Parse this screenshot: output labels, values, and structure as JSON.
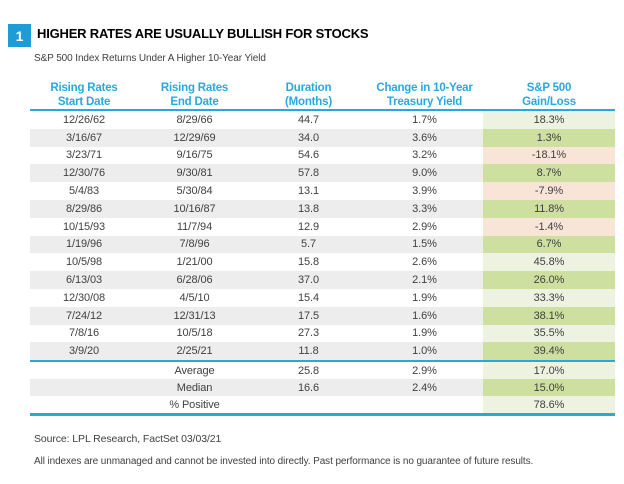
{
  "figure_number": "1",
  "source": "Source: LPL Research, FactSet 03/03/21",
  "disclaimer": "All indexes are unmanaged and cannot be invested into directly. Past performance is no guarantee of future results.",
  "colors": {
    "accent-blue": "#29A8E0",
    "badge-blue": "#1C9DD8",
    "row-stripe": "#EDEDEE",
    "positive-green": "#CDE0A0",
    "positive-green-light": "#EDF3E0",
    "negative-red": "#F9E4D8",
    "text-dark": "#414042"
  },
  "chart_data": {
    "type": "table",
    "title": "HIGHER RATES ARE USUALLY BULLISH FOR STOCKS",
    "subtitle": "S&P 500 Index Returns Under A Higher 10-Year Yield",
    "columns": [
      {
        "line1": "Rising Rates",
        "line2": "Start Date"
      },
      {
        "line1": "Rising Rates",
        "line2": "End Date"
      },
      {
        "line1": "Duration",
        "line2": "(Months)"
      },
      {
        "line1": "Change in 10-Year",
        "line2": "Treasury Yield"
      },
      {
        "line1": "S&P 500",
        "line2": "Gain/Loss"
      }
    ],
    "rows": [
      {
        "cells": [
          "12/26/62",
          "8/29/66",
          "44.7",
          "1.7%",
          "18.3%"
        ],
        "tint": "green-light"
      },
      {
        "cells": [
          "3/16/67",
          "12/29/69",
          "34.0",
          "3.6%",
          "1.3%"
        ],
        "tint": "green-dark"
      },
      {
        "cells": [
          "3/23/71",
          "9/16/75",
          "54.6",
          "3.2%",
          "-18.1%"
        ],
        "tint": "red"
      },
      {
        "cells": [
          "12/30/76",
          "9/30/81",
          "57.8",
          "9.0%",
          "8.7%"
        ],
        "tint": "green-dark"
      },
      {
        "cells": [
          "5/4/83",
          "5/30/84",
          "13.1",
          "3.9%",
          "-7.9%"
        ],
        "tint": "red"
      },
      {
        "cells": [
          "8/29/86",
          "10/16/87",
          "13.8",
          "3.3%",
          "11.8%"
        ],
        "tint": "green-dark"
      },
      {
        "cells": [
          "10/15/93",
          "11/7/94",
          "12.9",
          "2.9%",
          "-1.4%"
        ],
        "tint": "red"
      },
      {
        "cells": [
          "1/19/96",
          "7/8/96",
          "5.7",
          "1.5%",
          "6.7%"
        ],
        "tint": "green-dark"
      },
      {
        "cells": [
          "10/5/98",
          "1/21/00",
          "15.8",
          "2.6%",
          "45.8%"
        ],
        "tint": "green-light"
      },
      {
        "cells": [
          "6/13/03",
          "6/28/06",
          "37.0",
          "2.1%",
          "26.0%"
        ],
        "tint": "green-dark"
      },
      {
        "cells": [
          "12/30/08",
          "4/5/10",
          "15.4",
          "1.9%",
          "33.3%"
        ],
        "tint": "green-light"
      },
      {
        "cells": [
          "7/24/12",
          "12/31/13",
          "17.5",
          "1.6%",
          "38.1%"
        ],
        "tint": "green-dark"
      },
      {
        "cells": [
          "7/8/16",
          "10/5/18",
          "27.3",
          "1.9%",
          "35.5%"
        ],
        "tint": "green-light"
      },
      {
        "cells": [
          "3/9/20",
          "2/25/21",
          "11.8",
          "1.0%",
          "39.4%"
        ],
        "tint": "green-dark"
      }
    ],
    "summary_rows": [
      {
        "cells": [
          "",
          "Average",
          "25.8",
          "2.9%",
          "17.0%"
        ],
        "tint": "green-light"
      },
      {
        "cells": [
          "",
          "Median",
          "16.6",
          "2.4%",
          "15.0%"
        ],
        "tint": "green-dark"
      },
      {
        "cells": [
          "",
          "% Positive",
          "",
          "",
          "78.6%"
        ],
        "tint": "green-light"
      }
    ]
  }
}
